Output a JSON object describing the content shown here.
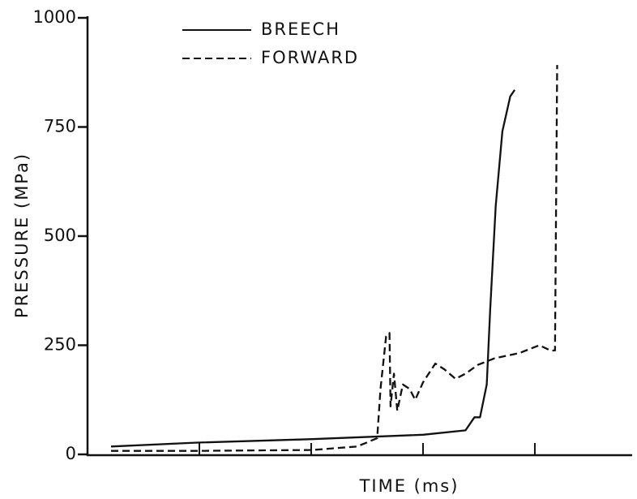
{
  "chart_data": {
    "type": "line",
    "xlabel": "TIME (ms)",
    "ylabel": "PRESSURE (MPa)",
    "xlim": [
      0,
      4.87
    ],
    "xticks": [
      1,
      2,
      3,
      4
    ],
    "ylim": [
      0,
      1000
    ],
    "yticks": [
      0,
      250,
      500,
      750,
      1000
    ],
    "series": [
      {
        "name": "BREECH",
        "color": "#111111",
        "dash": false,
        "x": [
          0.21,
          0.98,
          2.01,
          3.0,
          3.38,
          3.46,
          3.51,
          3.57,
          3.6,
          3.65,
          3.71,
          3.78,
          3.82
        ],
        "values": [
          18,
          27,
          35,
          45,
          55,
          85,
          85,
          160,
          330,
          570,
          740,
          820,
          835
        ]
      },
      {
        "name": "FORWARD",
        "color": "#111111",
        "dash": true,
        "x": [
          0.21,
          0.96,
          2.01,
          2.41,
          2.59,
          2.62,
          2.67,
          2.7,
          2.71,
          2.74,
          2.77,
          2.82,
          2.88,
          2.93,
          3.0,
          3.11,
          3.19,
          3.29,
          3.38,
          3.49,
          3.64,
          3.86,
          4.04,
          4.14,
          4.18,
          4.2
        ],
        "values": [
          8,
          8,
          10,
          18,
          37,
          150,
          270,
          278,
          110,
          185,
          100,
          160,
          150,
          125,
          165,
          208,
          195,
          173,
          185,
          205,
          220,
          232,
          250,
          238,
          238,
          892
        ]
      }
    ]
  }
}
